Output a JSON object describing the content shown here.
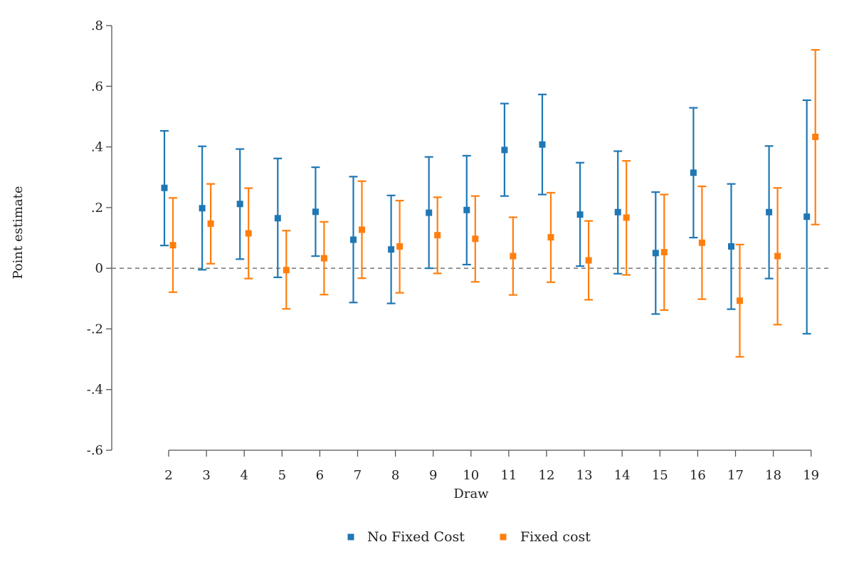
{
  "chart_data": {
    "type": "scatter",
    "title": "",
    "xlabel": "Draw",
    "ylabel": "Point estimate",
    "x_ticks": [
      "2",
      "3",
      "4",
      "5",
      "6",
      "7",
      "8",
      "9",
      "10",
      "11",
      "12",
      "13",
      "14",
      "15",
      "16",
      "17",
      "18",
      "19"
    ],
    "y_ticks": [
      ".8",
      ".6",
      ".4",
      ".2",
      "0",
      "-.2",
      "-.4",
      "-.6"
    ],
    "y_tick_values": [
      0.8,
      0.6,
      0.4,
      0.2,
      0,
      -0.2,
      -0.4,
      -0.6
    ],
    "ylim": [
      -0.6,
      0.8
    ],
    "xlim": [
      2,
      19
    ],
    "reference_line": {
      "y": 0,
      "style": "dashed"
    },
    "grid": false,
    "legend_position": "bottom",
    "series": [
      {
        "name": "No Fixed Cost",
        "color": "#1f77b4",
        "points": [
          {
            "draw": 2,
            "estimate": 0.265,
            "ci_low": 0.075,
            "ci_high": 0.453
          },
          {
            "draw": 3,
            "estimate": 0.198,
            "ci_low": -0.005,
            "ci_high": 0.402
          },
          {
            "draw": 4,
            "estimate": 0.212,
            "ci_low": 0.03,
            "ci_high": 0.393
          },
          {
            "draw": 5,
            "estimate": 0.165,
            "ci_low": -0.03,
            "ci_high": 0.362
          },
          {
            "draw": 6,
            "estimate": 0.186,
            "ci_low": 0.04,
            "ci_high": 0.333
          },
          {
            "draw": 7,
            "estimate": 0.094,
            "ci_low": -0.113,
            "ci_high": 0.302
          },
          {
            "draw": 8,
            "estimate": 0.062,
            "ci_low": -0.116,
            "ci_high": 0.24
          },
          {
            "draw": 9,
            "estimate": 0.183,
            "ci_low": 0.0,
            "ci_high": 0.367
          },
          {
            "draw": 10,
            "estimate": 0.192,
            "ci_low": 0.012,
            "ci_high": 0.371
          },
          {
            "draw": 11,
            "estimate": 0.39,
            "ci_low": 0.238,
            "ci_high": 0.543
          },
          {
            "draw": 12,
            "estimate": 0.408,
            "ci_low": 0.243,
            "ci_high": 0.573
          },
          {
            "draw": 13,
            "estimate": 0.177,
            "ci_low": 0.007,
            "ci_high": 0.348
          },
          {
            "draw": 14,
            "estimate": 0.185,
            "ci_low": -0.018,
            "ci_high": 0.386
          },
          {
            "draw": 15,
            "estimate": 0.05,
            "ci_low": -0.151,
            "ci_high": 0.251
          },
          {
            "draw": 16,
            "estimate": 0.315,
            "ci_low": 0.101,
            "ci_high": 0.529
          },
          {
            "draw": 17,
            "estimate": 0.072,
            "ci_low": -0.135,
            "ci_high": 0.278
          },
          {
            "draw": 18,
            "estimate": 0.185,
            "ci_low": -0.034,
            "ci_high": 0.403
          },
          {
            "draw": 19,
            "estimate": 0.17,
            "ci_low": -0.216,
            "ci_high": 0.554
          }
        ]
      },
      {
        "name": "Fixed cost",
        "color": "#ff7f0e",
        "points": [
          {
            "draw": 2,
            "estimate": 0.076,
            "ci_low": -0.079,
            "ci_high": 0.232
          },
          {
            "draw": 3,
            "estimate": 0.147,
            "ci_low": 0.015,
            "ci_high": 0.278
          },
          {
            "draw": 4,
            "estimate": 0.115,
            "ci_low": -0.034,
            "ci_high": 0.264
          },
          {
            "draw": 5,
            "estimate": -0.006,
            "ci_low": -0.134,
            "ci_high": 0.124
          },
          {
            "draw": 6,
            "estimate": 0.033,
            "ci_low": -0.087,
            "ci_high": 0.153
          },
          {
            "draw": 7,
            "estimate": 0.127,
            "ci_low": -0.033,
            "ci_high": 0.287
          },
          {
            "draw": 8,
            "estimate": 0.072,
            "ci_low": -0.081,
            "ci_high": 0.223
          },
          {
            "draw": 9,
            "estimate": 0.109,
            "ci_low": -0.017,
            "ci_high": 0.234
          },
          {
            "draw": 10,
            "estimate": 0.097,
            "ci_low": -0.045,
            "ci_high": 0.238
          },
          {
            "draw": 11,
            "estimate": 0.04,
            "ci_low": -0.088,
            "ci_high": 0.168
          },
          {
            "draw": 12,
            "estimate": 0.102,
            "ci_low": -0.046,
            "ci_high": 0.249
          },
          {
            "draw": 13,
            "estimate": 0.026,
            "ci_low": -0.104,
            "ci_high": 0.156
          },
          {
            "draw": 14,
            "estimate": 0.167,
            "ci_low": -0.022,
            "ci_high": 0.354
          },
          {
            "draw": 15,
            "estimate": 0.053,
            "ci_low": -0.138,
            "ci_high": 0.243
          },
          {
            "draw": 16,
            "estimate": 0.084,
            "ci_low": -0.102,
            "ci_high": 0.27
          },
          {
            "draw": 17,
            "estimate": -0.107,
            "ci_low": -0.292,
            "ci_high": 0.078
          },
          {
            "draw": 18,
            "estimate": 0.04,
            "ci_low": -0.186,
            "ci_high": 0.265
          },
          {
            "draw": 19,
            "estimate": 0.433,
            "ci_low": 0.144,
            "ci_high": 0.72
          }
        ]
      }
    ]
  }
}
